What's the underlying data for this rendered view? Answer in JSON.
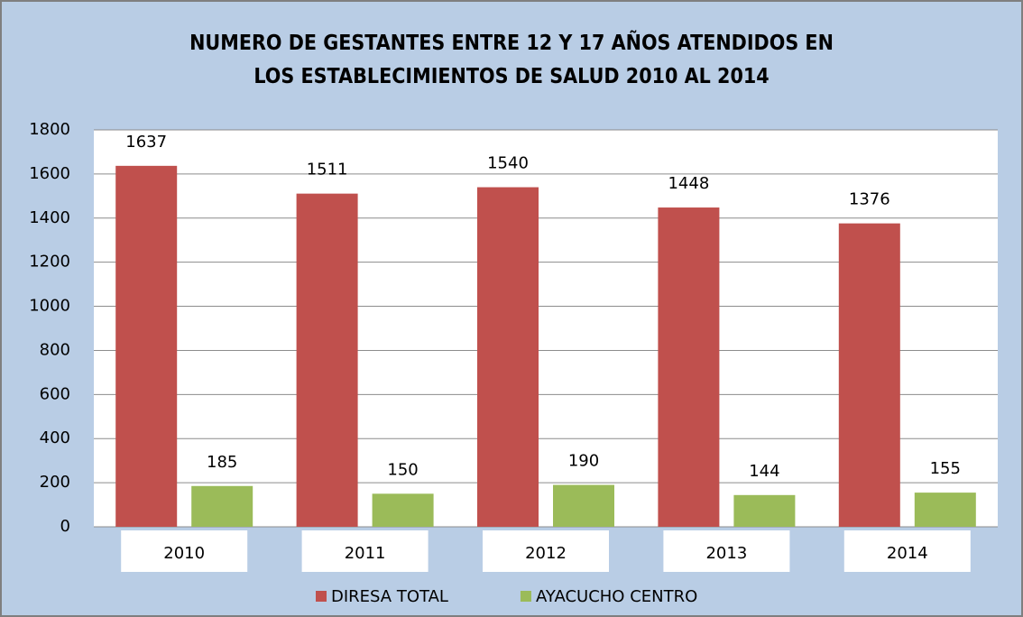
{
  "chart_data": {
    "type": "bar",
    "title": "NUMERO DE GESTANTES ENTRE 12 Y 17 AÑOS ATENDIDOS EN LOS ESTABLECIMIENTOS DE SALUD 2010 AL 2014",
    "categories": [
      "2010",
      "2011",
      "2012",
      "2013",
      "2014"
    ],
    "series": [
      {
        "name": "DIRESA TOTAL",
        "color": "#c0504d",
        "values": [
          1637,
          1511,
          1540,
          1448,
          1376
        ]
      },
      {
        "name": "AYACUCHO CENTRO",
        "color": "#9bbb59",
        "values": [
          185,
          150,
          190,
          144,
          155
        ]
      }
    ],
    "ylim": [
      0,
      1800
    ],
    "yticks": [
      0,
      200,
      400,
      600,
      800,
      1000,
      1200,
      1400,
      1600,
      1800
    ],
    "grid": true,
    "legend": "bottom"
  }
}
